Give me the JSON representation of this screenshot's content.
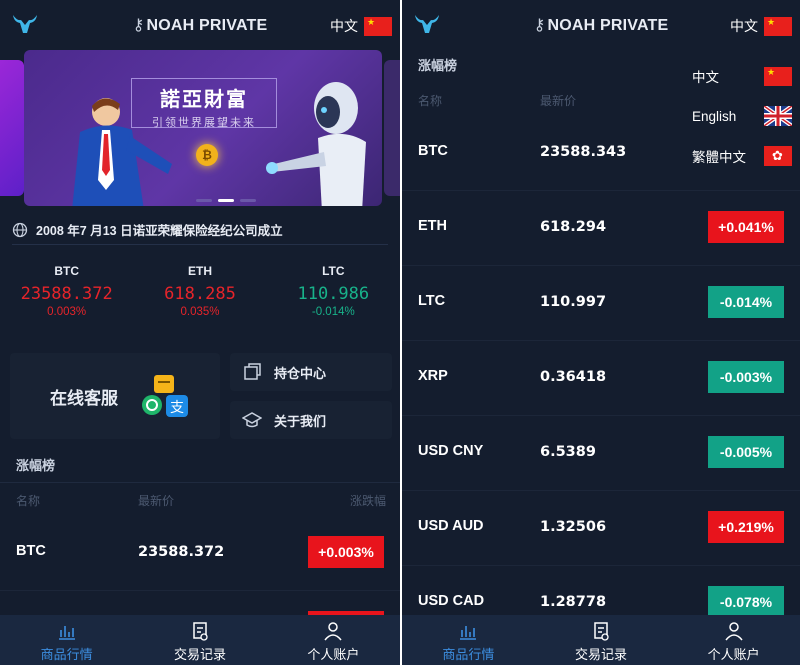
{
  "brand": "NOAH PRIVATE",
  "lang_current": "中文",
  "banner": {
    "title": "諾亞財富",
    "subtitle": "引领世界展望未来",
    "coin": "₿"
  },
  "notice": "2008 年7 月13 日诺亚荣耀保险经纪公司成立",
  "tickers": [
    {
      "symbol": "BTC",
      "price": "23588.372",
      "pct": "0.003%",
      "color": "red"
    },
    {
      "symbol": "ETH",
      "price": "618.285",
      "pct": "0.035%",
      "color": "red"
    },
    {
      "symbol": "LTC",
      "price": "110.986",
      "pct": "-0.014%",
      "color": "green"
    }
  ],
  "cards": {
    "service": "在线客服",
    "positions": "持仓中心",
    "about": "关于我们"
  },
  "chart_section": {
    "title": "涨幅榜",
    "col_name": "名称",
    "col_price": "最新价",
    "col_change": "涨跌幅"
  },
  "left_rows": [
    {
      "name": "BTC",
      "price": "23588.372",
      "change": "+0.003%",
      "dir": "up"
    }
  ],
  "right_rows": [
    {
      "name": "BTC",
      "price": "23588.343",
      "change": "",
      "dir": ""
    },
    {
      "name": "ETH",
      "price": "618.294",
      "change": "+0.041%",
      "dir": "up"
    },
    {
      "name": "LTC",
      "price": "110.997",
      "change": "-0.014%",
      "dir": "dn"
    },
    {
      "name": "XRP",
      "price": "0.36418",
      "change": "-0.003%",
      "dir": "dn"
    },
    {
      "name": "USD CNY",
      "price": "6.5389",
      "change": "-0.005%",
      "dir": "dn"
    },
    {
      "name": "USD AUD",
      "price": "1.32506",
      "change": "+0.219%",
      "dir": "up"
    },
    {
      "name": "USD CAD",
      "price": "1.28778",
      "change": "-0.078%",
      "dir": "dn"
    }
  ],
  "lang_menu": [
    {
      "label": "中文",
      "flag": "cn"
    },
    {
      "label": "English",
      "flag": "uk"
    },
    {
      "label": "繁體中文",
      "flag": "hk"
    }
  ],
  "nav": {
    "market": "商品行情",
    "trades": "交易记录",
    "account": "个人账户"
  },
  "colors": {
    "up": "#e8141c",
    "down": "#12a287",
    "bg": "#141d2e",
    "nav_active": "#3c8ee0"
  }
}
